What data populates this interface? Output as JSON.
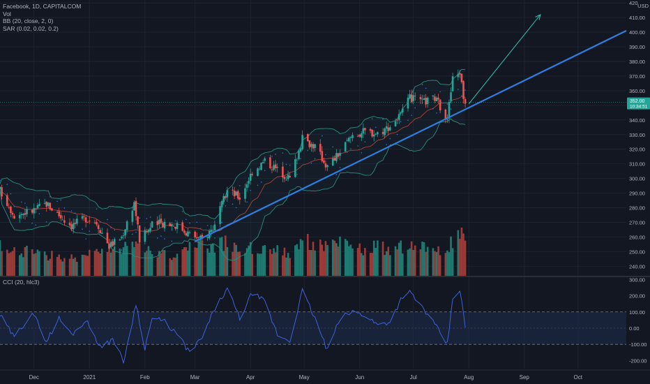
{
  "legend": {
    "symbol": "Facebook, 1D, CAPITALCOM",
    "volume": "Vol",
    "bb": "BB (20, close, 2, 0)",
    "sar": "SAR (0.02, 0.02, 0.2)"
  },
  "cci_legend": "CCI (20, hlc3)",
  "currency": "USD",
  "price_badge": {
    "price": "352.00",
    "countdown": "10:34:51"
  },
  "colors": {
    "background": "#131722",
    "up": "#26a69a",
    "down": "#ef5350",
    "up_vol": "#1f7a72",
    "down_vol": "#9c3b38",
    "trendline": "#2f7fe0",
    "arrow": "#34b5a8",
    "bb_band": "#2a8f7f",
    "bb_basis": "#b84a3c",
    "sar": "#3b6fe0",
    "cci": "#3e63dd",
    "cci_band": "#1e2b4d",
    "grid": "#1f2330",
    "text": "#b2b5be"
  },
  "price_axis": {
    "ticks": [
      "420",
      "410.00",
      "400.00",
      "390.00",
      "380.00",
      "370.00",
      "360.00",
      "350.00",
      "340.00",
      "330.00",
      "320.00",
      "310.00",
      "300.00",
      "290.00",
      "280.00",
      "270.00",
      "260.00",
      "250.00",
      "240.00"
    ]
  },
  "cci_axis": {
    "ticks": [
      "300.00",
      "200.00",
      "100.00",
      "0.00",
      "-100.00",
      "-200.00"
    ]
  },
  "time_axis": {
    "ticks": [
      "Dec",
      "2021",
      "Feb",
      "Mar",
      "Apr",
      "May",
      "Jun",
      "Jul",
      "Aug",
      "Sep",
      "Oct"
    ]
  },
  "chart_data": {
    "type": "candlestick",
    "symbol": "Facebook",
    "interval": "1D",
    "price_range": [
      233,
      422
    ],
    "cci_range": [
      -250,
      310
    ],
    "cci_levels": [
      100,
      0,
      -100
    ],
    "time_range": [
      "2020-11-12",
      "2021-10-28"
    ],
    "anchors": [
      {
        "d": "2020-11-12",
        "p": 292,
        "v": 0.45
      },
      {
        "d": "2020-11-20",
        "p": 275,
        "v": 0.35
      },
      {
        "d": "2020-11-30",
        "p": 278,
        "v": 0.38
      },
      {
        "d": "2020-12-08",
        "p": 283,
        "v": 0.32
      },
      {
        "d": "2020-12-15",
        "p": 275,
        "v": 0.3
      },
      {
        "d": "2020-12-22",
        "p": 268,
        "v": 0.28
      },
      {
        "d": "2020-12-30",
        "p": 273,
        "v": 0.3
      },
      {
        "d": "2021-01-05",
        "p": 270,
        "v": 0.36
      },
      {
        "d": "2021-01-12",
        "p": 254,
        "v": 0.4
      },
      {
        "d": "2021-01-19",
        "p": 260,
        "v": 0.38
      },
      {
        "d": "2021-01-26",
        "p": 284,
        "v": 0.55
      },
      {
        "d": "2021-01-29",
        "p": 258,
        "v": 0.55
      },
      {
        "d": "2021-02-05",
        "p": 268,
        "v": 0.38
      },
      {
        "d": "2021-02-12",
        "p": 270,
        "v": 0.32
      },
      {
        "d": "2021-02-19",
        "p": 268,
        "v": 0.32
      },
      {
        "d": "2021-02-26",
        "p": 262,
        "v": 0.42
      },
      {
        "d": "2021-03-05",
        "p": 258,
        "v": 0.48
      },
      {
        "d": "2021-03-12",
        "p": 268,
        "v": 0.45
      },
      {
        "d": "2021-03-19",
        "p": 292,
        "v": 0.5
      },
      {
        "d": "2021-03-26",
        "p": 287,
        "v": 0.42
      },
      {
        "d": "2021-04-02",
        "p": 305,
        "v": 0.42
      },
      {
        "d": "2021-04-09",
        "p": 312,
        "v": 0.45
      },
      {
        "d": "2021-04-16",
        "p": 306,
        "v": 0.38
      },
      {
        "d": "2021-04-23",
        "p": 300,
        "v": 0.35
      },
      {
        "d": "2021-04-30",
        "p": 327,
        "v": 0.58
      },
      {
        "d": "2021-05-07",
        "p": 322,
        "v": 0.45
      },
      {
        "d": "2021-05-14",
        "p": 308,
        "v": 0.48
      },
      {
        "d": "2021-05-21",
        "p": 318,
        "v": 0.48
      },
      {
        "d": "2021-05-28",
        "p": 330,
        "v": 0.42
      },
      {
        "d": "2021-06-04",
        "p": 332,
        "v": 0.4
      },
      {
        "d": "2021-06-11",
        "p": 331,
        "v": 0.45
      },
      {
        "d": "2021-06-18",
        "p": 336,
        "v": 0.38
      },
      {
        "d": "2021-06-25",
        "p": 345,
        "v": 0.45
      },
      {
        "d": "2021-06-29",
        "p": 355,
        "v": 0.5
      },
      {
        "d": "2021-07-06",
        "p": 352,
        "v": 0.42
      },
      {
        "d": "2021-07-13",
        "p": 355,
        "v": 0.38
      },
      {
        "d": "2021-07-20",
        "p": 342,
        "v": 0.45
      },
      {
        "d": "2021-07-23",
        "p": 368,
        "v": 0.5
      },
      {
        "d": "2021-07-27",
        "p": 373,
        "v": 0.72
      },
      {
        "d": "2021-07-29",
        "p": 356,
        "v": 0.58
      },
      {
        "d": "2021-07-30",
        "p": 352,
        "v": 0.55
      }
    ],
    "cci_series": [
      {
        "d": "2020-11-12",
        "v": 80
      },
      {
        "d": "2020-11-20",
        "v": -60
      },
      {
        "d": "2020-11-30",
        "v": 100
      },
      {
        "d": "2020-12-08",
        "v": -80
      },
      {
        "d": "2020-12-15",
        "v": 60
      },
      {
        "d": "2020-12-22",
        "v": -40
      },
      {
        "d": "2020-12-30",
        "v": 50
      },
      {
        "d": "2021-01-08",
        "v": -130
      },
      {
        "d": "2021-01-14",
        "v": -60
      },
      {
        "d": "2021-01-20",
        "v": -210
      },
      {
        "d": "2021-01-27",
        "v": 150
      },
      {
        "d": "2021-02-01",
        "v": -120
      },
      {
        "d": "2021-02-05",
        "v": 60
      },
      {
        "d": "2021-02-12",
        "v": 40
      },
      {
        "d": "2021-02-19",
        "v": -40
      },
      {
        "d": "2021-02-26",
        "v": -150
      },
      {
        "d": "2021-03-05",
        "v": -60
      },
      {
        "d": "2021-03-12",
        "v": 120
      },
      {
        "d": "2021-03-19",
        "v": 240
      },
      {
        "d": "2021-03-26",
        "v": 60
      },
      {
        "d": "2021-04-02",
        "v": 220
      },
      {
        "d": "2021-04-09",
        "v": 160
      },
      {
        "d": "2021-04-16",
        "v": -40
      },
      {
        "d": "2021-04-23",
        "v": -80
      },
      {
        "d": "2021-04-30",
        "v": 230
      },
      {
        "d": "2021-05-07",
        "v": 60
      },
      {
        "d": "2021-05-14",
        "v": -140
      },
      {
        "d": "2021-05-21",
        "v": 60
      },
      {
        "d": "2021-05-28",
        "v": 100
      },
      {
        "d": "2021-06-04",
        "v": 80
      },
      {
        "d": "2021-06-11",
        "v": 20
      },
      {
        "d": "2021-06-18",
        "v": 40
      },
      {
        "d": "2021-06-25",
        "v": 200
      },
      {
        "d": "2021-06-29",
        "v": 220
      },
      {
        "d": "2021-07-06",
        "v": 130
      },
      {
        "d": "2021-07-13",
        "v": 20
      },
      {
        "d": "2021-07-20",
        "v": -100
      },
      {
        "d": "2021-07-23",
        "v": 180
      },
      {
        "d": "2021-07-27",
        "v": 240
      },
      {
        "d": "2021-07-30",
        "v": 0
      }
    ],
    "trendline": [
      {
        "d": "2021-03-01",
        "p": 257
      },
      {
        "d": "2021-10-28",
        "p": 401
      }
    ],
    "arrow": [
      {
        "d": "2021-08-01",
        "p": 351
      },
      {
        "d": "2021-09-10",
        "p": 412
      }
    ]
  }
}
